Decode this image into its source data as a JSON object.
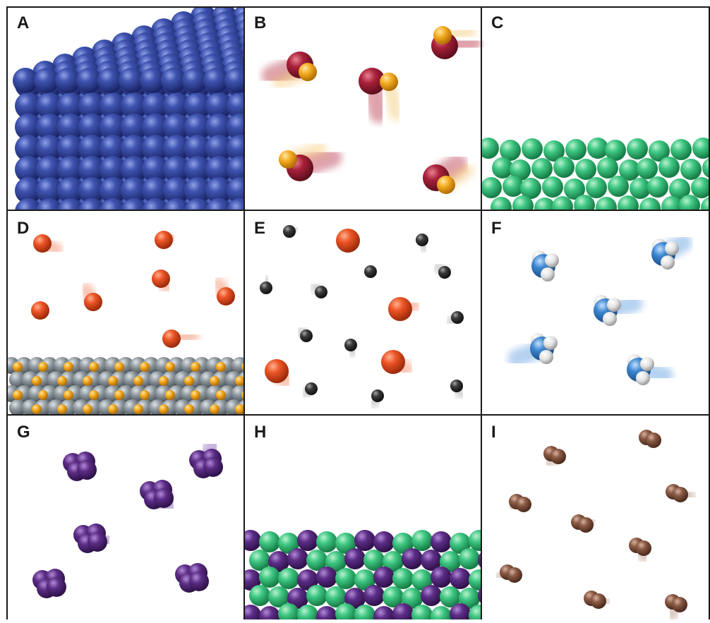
{
  "figure": {
    "panels": [
      {
        "label": "A",
        "depicts": "blue-atom-solid-lattice",
        "color": "#2e3f8c"
      },
      {
        "label": "B",
        "depicts": "red-yellow-diatomic-molecules",
        "colors": [
          "#9e1e32",
          "#f2a81d"
        ]
      },
      {
        "label": "C",
        "depicts": "green-atom-liquid-layer",
        "color": "#2fb86b"
      },
      {
        "label": "D",
        "depicts": "orange-atoms-over-grey-yellow-solid",
        "colors": [
          "#e8522a",
          "#8c969c",
          "#f2a81d"
        ]
      },
      {
        "label": "E",
        "depicts": "orange-and-grey-atom-mixture",
        "colors": [
          "#e8522a",
          "#3a3a3a"
        ]
      },
      {
        "label": "F",
        "depicts": "blue-white-triatomic-molecules",
        "colors": [
          "#3d86cf",
          "#e6e6e6"
        ]
      },
      {
        "label": "G",
        "depicts": "purple-tetratomic-molecules",
        "color": "#5b2d84"
      },
      {
        "label": "H",
        "depicts": "purple-green-liquid-mixture",
        "colors": [
          "#5b2d84",
          "#3fc783"
        ]
      },
      {
        "label": "I",
        "depicts": "brown-diatomic-molecules",
        "color": "#8a5a44"
      }
    ]
  }
}
